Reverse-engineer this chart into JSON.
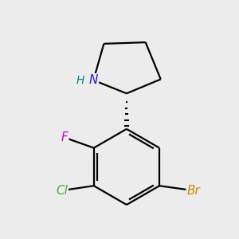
{
  "background_color": "#ececec",
  "bond_color": "#000000",
  "bond_width": 1.6,
  "atom_labels": {
    "N": {
      "text": "N",
      "color": "#2020cc",
      "fontsize": 11
    },
    "H": {
      "text": "H",
      "color": "#008888",
      "fontsize": 10
    },
    "F": {
      "text": "F",
      "color": "#cc00cc",
      "fontsize": 11
    },
    "Cl": {
      "text": "Cl",
      "color": "#44aa44",
      "fontsize": 11
    },
    "Br": {
      "text": "Br",
      "color": "#cc8800",
      "fontsize": 11
    }
  },
  "fig_width": 3.0,
  "fig_height": 3.0,
  "dpi": 100,
  "xlim": [
    -2.2,
    2.2
  ],
  "ylim": [
    -2.8,
    2.2
  ]
}
